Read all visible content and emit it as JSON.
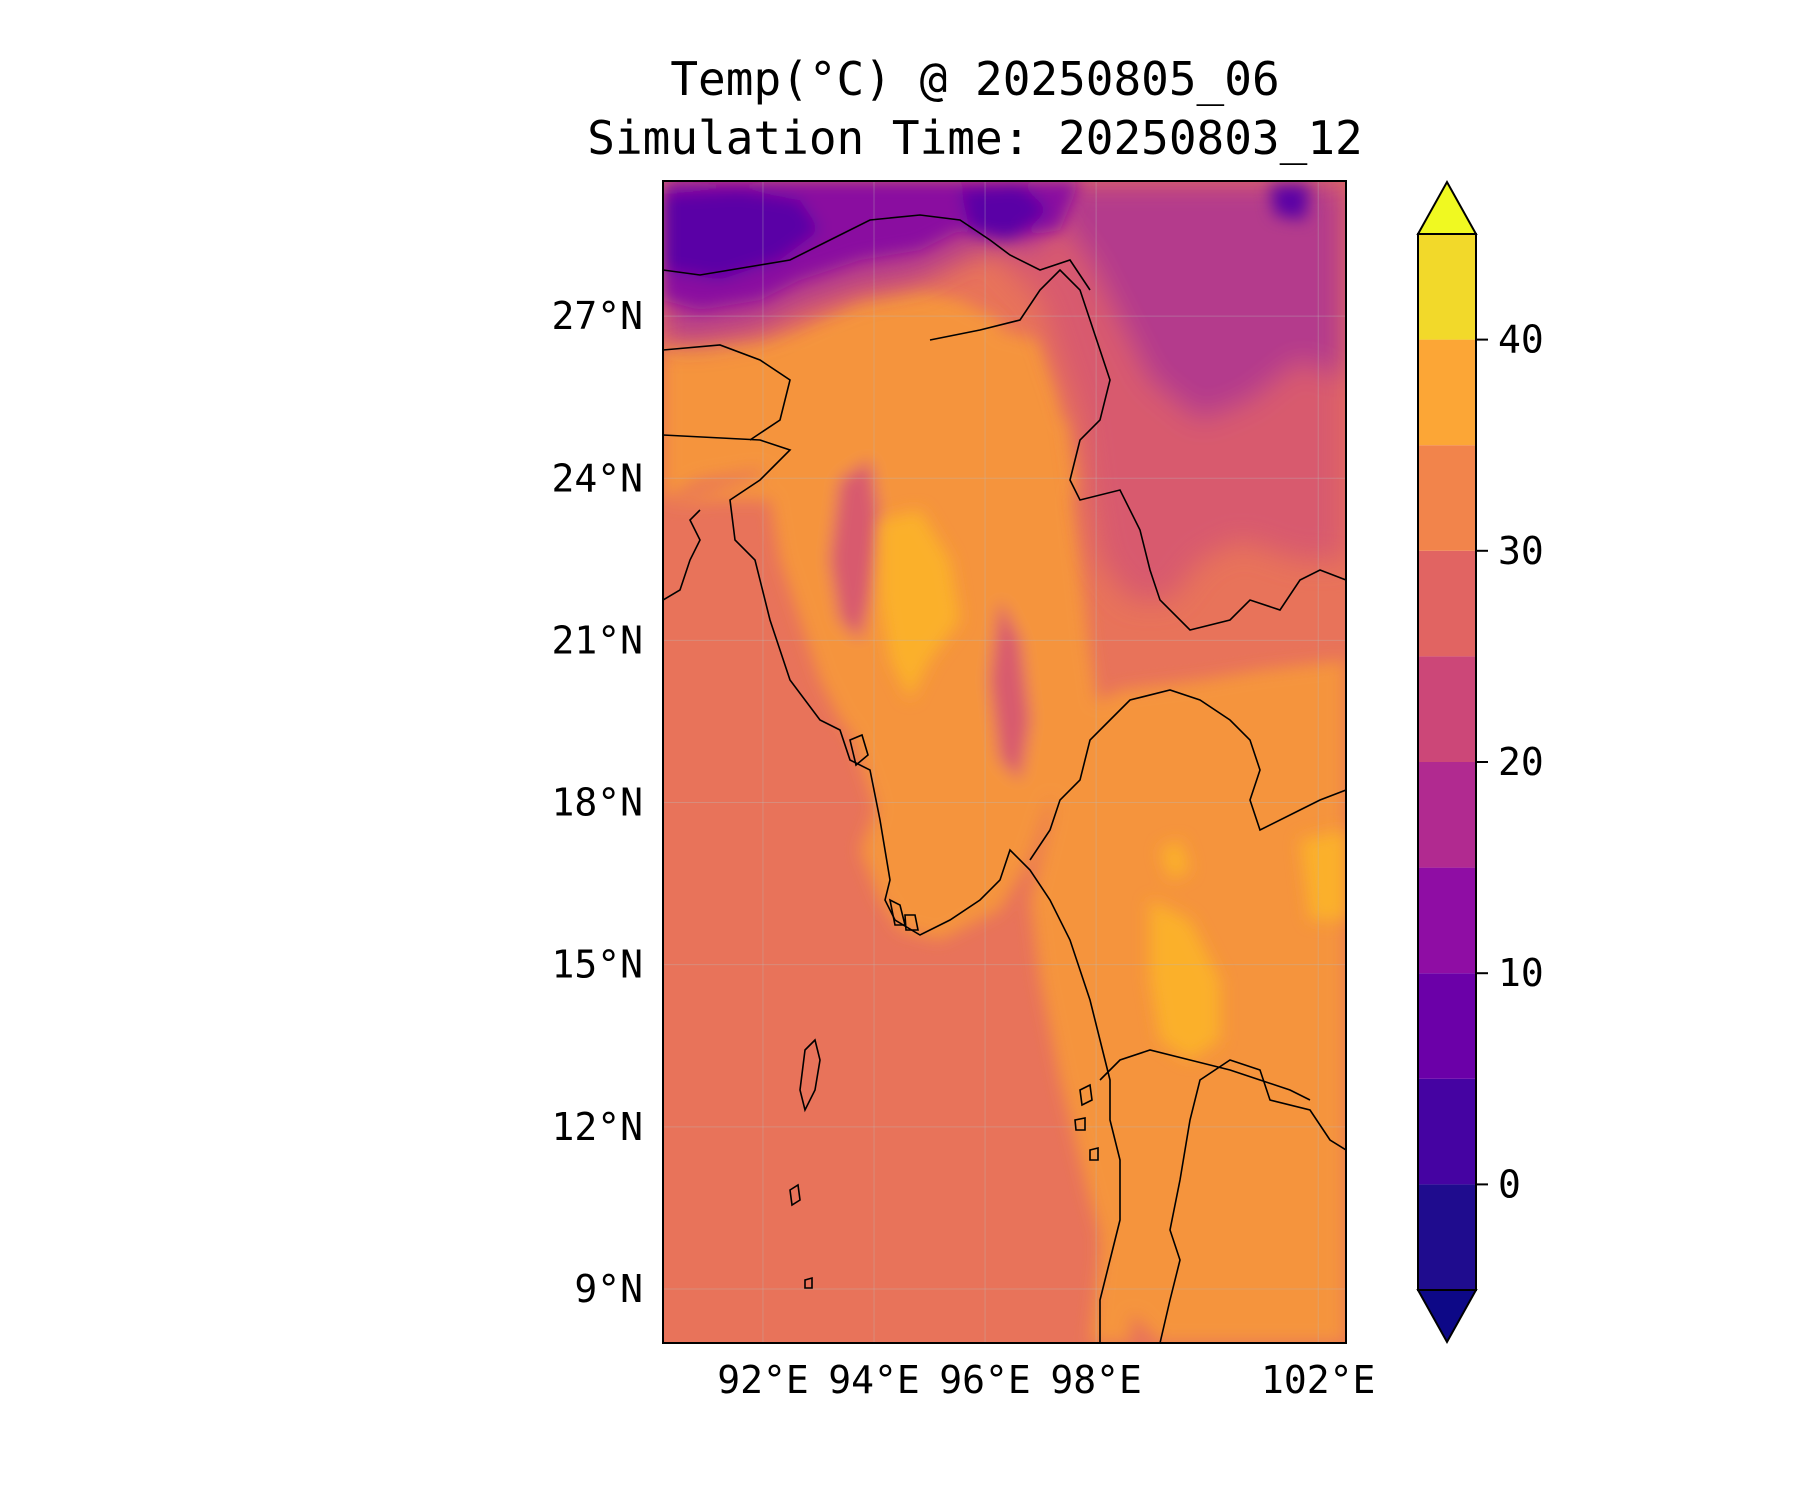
{
  "title_line1": "Temp(°C) @ 20250805_06",
  "title_line2": "Simulation Time: 20250803_12",
  "map": {
    "lon_range": [
      90.2,
      102.5
    ],
    "lat_range": [
      8.0,
      29.5
    ],
    "lon_ticks": [
      {
        "value": 92,
        "label": "92°E"
      },
      {
        "value": 94,
        "label": "94°E"
      },
      {
        "value": 96,
        "label": "96°E"
      },
      {
        "value": 98,
        "label": "98°E"
      },
      {
        "value": 102,
        "label": "102°E"
      }
    ],
    "lat_ticks": [
      {
        "value": 9,
        "label": "9°N"
      },
      {
        "value": 12,
        "label": "12°N"
      },
      {
        "value": 15,
        "label": "15°N"
      },
      {
        "value": 18,
        "label": "18°N"
      },
      {
        "value": 21,
        "label": "21°N"
      },
      {
        "value": 24,
        "label": "24°N"
      },
      {
        "value": 27,
        "label": "27°N"
      }
    ],
    "gridlines": true,
    "colors": {
      "ocean": "#e8735a",
      "lowland": "#f5943e",
      "hot": "#fbb02a",
      "highland": "#d85a6e",
      "mountain": "#b43b8c",
      "cold": "#8a10a0",
      "very_cold": "#5a06a6"
    }
  },
  "colorbar": {
    "label_ticks": [
      {
        "value": 0,
        "label": "0"
      },
      {
        "value": 10,
        "label": "10"
      },
      {
        "value": 20,
        "label": "20"
      },
      {
        "value": 30,
        "label": "30"
      },
      {
        "value": 40,
        "label": "40"
      }
    ],
    "levels": [
      -5,
      0,
      5,
      10,
      15,
      20,
      25,
      30,
      35,
      40,
      45
    ],
    "colors": [
      "#1f0c8e",
      "#4503a2",
      "#6b00a8",
      "#8f0da4",
      "#b12a90",
      "#cc4778",
      "#e16462",
      "#f2844b",
      "#fca636",
      "#f2d92a"
    ],
    "extend_low_color": "#0d0887",
    "extend_high_color": "#f0f921"
  }
}
